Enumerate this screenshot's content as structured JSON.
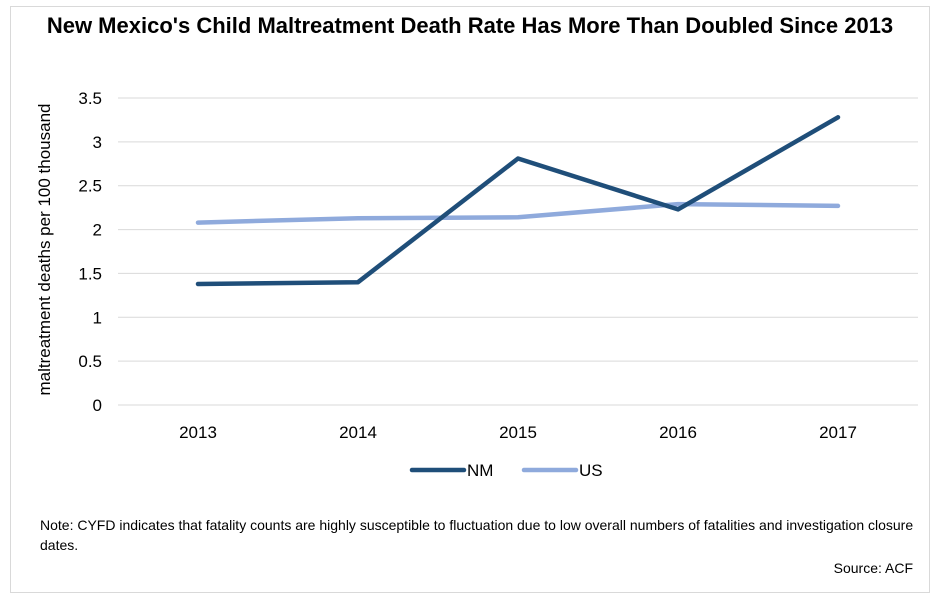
{
  "chart_data": {
    "type": "line",
    "title": "New Mexico's Child Maltreatment Death Rate Has More Than Doubled Since 2013",
    "ylabel": "maltreatment deaths per 100 thousand",
    "xlabel": "",
    "categories": [
      "2013",
      "2014",
      "2015",
      "2016",
      "2017"
    ],
    "ylim": [
      0,
      3.5
    ],
    "yticks": [
      "0",
      "0.5",
      "1",
      "1.5",
      "2",
      "2.5",
      "3",
      "3.5"
    ],
    "grid": true,
    "legend": "bottom",
    "series": [
      {
        "name": "NM",
        "color": "#1f4e79",
        "values": [
          1.38,
          1.4,
          2.81,
          2.23,
          3.28
        ]
      },
      {
        "name": "US",
        "color": "#8faadc",
        "values": [
          2.08,
          2.13,
          2.14,
          2.29,
          2.27
        ]
      }
    ]
  },
  "note": "Note: CYFD indicates that fatality counts are highly susceptible to fluctuation due to low overall numbers of fatalities and investigation closure dates.",
  "source": "Source: ACF"
}
